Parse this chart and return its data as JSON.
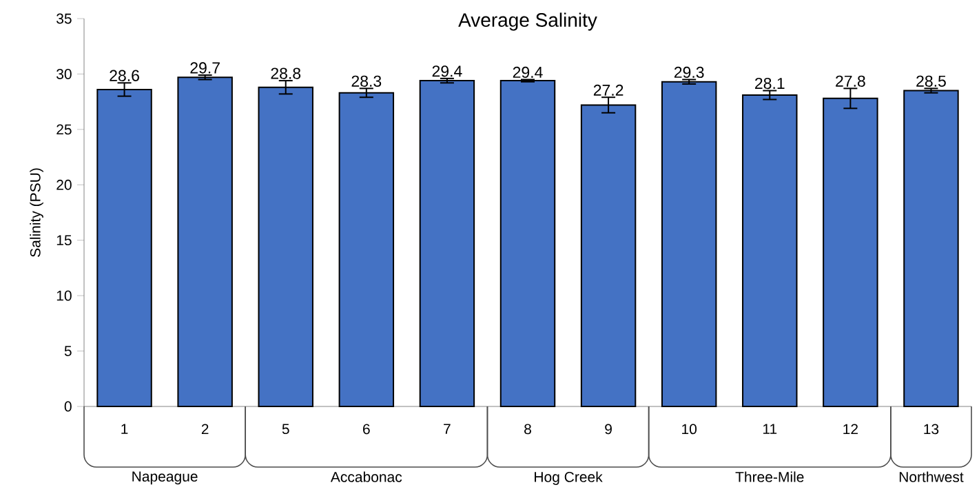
{
  "chart_data": {
    "type": "bar",
    "title": "Average Salinity",
    "ylabel": "Salinity (PSU)",
    "categories": [
      "1",
      "2",
      "5",
      "6",
      "7",
      "8",
      "9",
      "10",
      "11",
      "12",
      "13"
    ],
    "values": [
      28.6,
      29.7,
      28.8,
      28.3,
      29.4,
      29.4,
      27.2,
      29.3,
      28.1,
      27.8,
      28.5
    ],
    "errors": [
      0.6,
      0.2,
      0.6,
      0.4,
      0.2,
      0.1,
      0.7,
      0.2,
      0.4,
      0.9,
      0.2
    ],
    "color": "#4472c4",
    "data_labels": true,
    "ylim": [
      0,
      35
    ],
    "yticks": [
      0,
      5,
      10,
      15,
      20,
      25,
      30,
      35
    ],
    "annotations": [
      "Napeague",
      "Accabonac",
      "Hog Creek",
      "Three-Mile",
      "Northwest"
    ]
  }
}
